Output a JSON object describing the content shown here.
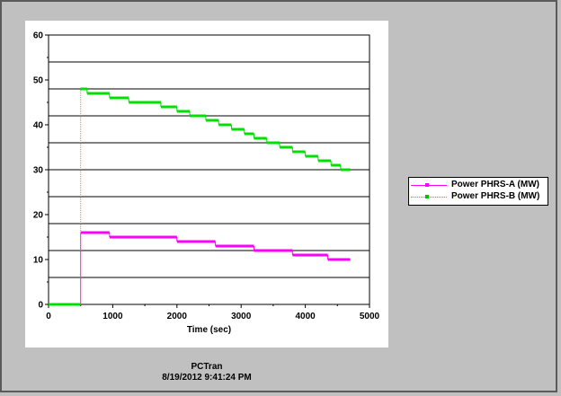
{
  "chart_data": {
    "type": "line",
    "xlabel": "Time (sec)",
    "ylabel": "",
    "xlim": [
      0,
      5000
    ],
    "ylim": [
      0,
      60
    ],
    "x_ticks": [
      "0",
      "1000",
      "2000",
      "3000",
      "4000",
      "5000"
    ],
    "y_ticks": [
      "0",
      "10",
      "20",
      "30",
      "40",
      "50",
      "60"
    ],
    "grid": "horizontal",
    "legend_position": "right",
    "series": [
      {
        "name": "Power PHRS-A (MW)",
        "color": "#ff00ff",
        "style": "solid",
        "points": [
          [
            0,
            0
          ],
          [
            500,
            0
          ],
          [
            500,
            16
          ],
          [
            950,
            16
          ],
          [
            950,
            15
          ],
          [
            2000,
            15
          ],
          [
            2000,
            14
          ],
          [
            2600,
            14
          ],
          [
            2600,
            13
          ],
          [
            3200,
            13
          ],
          [
            3200,
            12
          ],
          [
            3800,
            12
          ],
          [
            3800,
            11
          ],
          [
            4350,
            11
          ],
          [
            4350,
            10
          ],
          [
            4700,
            10
          ]
        ]
      },
      {
        "name": "Power PHRS-B (MW)",
        "color": "#00e000",
        "style": "dotted",
        "points": [
          [
            0,
            0
          ],
          [
            500,
            0
          ],
          [
            500,
            48
          ],
          [
            600,
            48
          ],
          [
            600,
            47
          ],
          [
            950,
            47
          ],
          [
            950,
            46
          ],
          [
            1250,
            46
          ],
          [
            1250,
            45
          ],
          [
            1750,
            45
          ],
          [
            1750,
            44
          ],
          [
            2000,
            44
          ],
          [
            2000,
            43
          ],
          [
            2200,
            43
          ],
          [
            2200,
            42
          ],
          [
            2450,
            42
          ],
          [
            2450,
            41
          ],
          [
            2650,
            41
          ],
          [
            2650,
            40
          ],
          [
            2850,
            40
          ],
          [
            2850,
            39
          ],
          [
            3050,
            39
          ],
          [
            3050,
            38
          ],
          [
            3200,
            38
          ],
          [
            3200,
            37
          ],
          [
            3400,
            37
          ],
          [
            3400,
            36
          ],
          [
            3600,
            36
          ],
          [
            3600,
            35
          ],
          [
            3800,
            35
          ],
          [
            3800,
            34
          ],
          [
            4000,
            34
          ],
          [
            4000,
            33
          ],
          [
            4200,
            33
          ],
          [
            4200,
            32
          ],
          [
            4400,
            32
          ],
          [
            4400,
            31
          ],
          [
            4550,
            31
          ],
          [
            4550,
            30
          ],
          [
            4700,
            30
          ]
        ]
      }
    ]
  },
  "footer": {
    "app_name": "PCTran",
    "timestamp": "8/19/2012 9:41:24 PM"
  }
}
